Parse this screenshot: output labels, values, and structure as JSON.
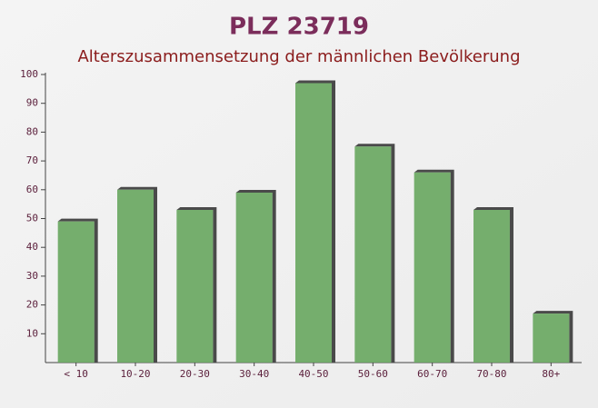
{
  "chart_data": {
    "type": "bar",
    "title": "PLZ 23719",
    "subtitle": "Alterszusammensetzung der männlichen Bevölkerung",
    "categories": [
      "< 10",
      "10-20",
      "20-30",
      "30-40",
      "40-50",
      "50-60",
      "60-70",
      "70-80",
      "80+"
    ],
    "values": [
      49,
      60,
      53,
      59,
      97,
      75,
      66,
      53,
      17
    ],
    "color": "#6aa862",
    "ylim": [
      0,
      100
    ],
    "yticks": [
      10,
      20,
      30,
      40,
      50,
      60,
      70,
      80,
      90,
      100
    ]
  }
}
